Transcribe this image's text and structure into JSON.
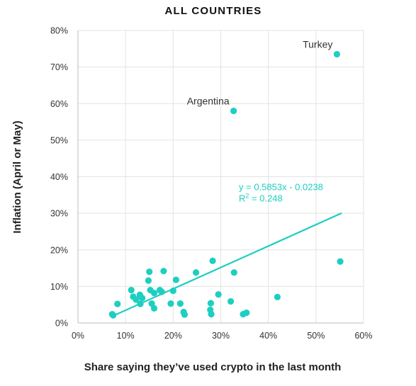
{
  "chart_data": {
    "type": "scatter",
    "title": "ALL COUNTRIES",
    "xlabel": "Share saying they’ve used crypto in the last month",
    "ylabel": "Inflation (April or May)",
    "xlim": [
      0,
      0.6
    ],
    "ylim": [
      0,
      0.8
    ],
    "xticks": [
      0,
      0.1,
      0.2,
      0.3,
      0.4,
      0.5,
      0.6
    ],
    "yticks": [
      0,
      0.1,
      0.2,
      0.3,
      0.4,
      0.5,
      0.6,
      0.7,
      0.8
    ],
    "xtick_labels": [
      "0%",
      "10%",
      "20%",
      "30%",
      "40%",
      "50%",
      "60%"
    ],
    "ytick_labels": [
      "0%",
      "10%",
      "20%",
      "30%",
      "40%",
      "50%",
      "60%",
      "70%",
      "80%"
    ],
    "grid": "vertical and horizontal",
    "color": "#1ccfc1",
    "points": [
      {
        "x": 0.544,
        "y": 0.735
      },
      {
        "x": 0.327,
        "y": 0.58
      },
      {
        "x": 0.551,
        "y": 0.168
      },
      {
        "x": 0.283,
        "y": 0.17
      },
      {
        "x": 0.18,
        "y": 0.142
      },
      {
        "x": 0.15,
        "y": 0.14
      },
      {
        "x": 0.248,
        "y": 0.138
      },
      {
        "x": 0.328,
        "y": 0.138
      },
      {
        "x": 0.206,
        "y": 0.118
      },
      {
        "x": 0.148,
        "y": 0.116
      },
      {
        "x": 0.112,
        "y": 0.09
      },
      {
        "x": 0.152,
        "y": 0.09
      },
      {
        "x": 0.172,
        "y": 0.09
      },
      {
        "x": 0.2,
        "y": 0.088
      },
      {
        "x": 0.16,
        "y": 0.082
      },
      {
        "x": 0.176,
        "y": 0.085
      },
      {
        "x": 0.13,
        "y": 0.077
      },
      {
        "x": 0.116,
        "y": 0.072
      },
      {
        "x": 0.135,
        "y": 0.068
      },
      {
        "x": 0.122,
        "y": 0.064
      },
      {
        "x": 0.295,
        "y": 0.078
      },
      {
        "x": 0.419,
        "y": 0.071
      },
      {
        "x": 0.321,
        "y": 0.059
      },
      {
        "x": 0.083,
        "y": 0.052
      },
      {
        "x": 0.131,
        "y": 0.052
      },
      {
        "x": 0.155,
        "y": 0.053
      },
      {
        "x": 0.195,
        "y": 0.053
      },
      {
        "x": 0.215,
        "y": 0.053
      },
      {
        "x": 0.279,
        "y": 0.054
      },
      {
        "x": 0.16,
        "y": 0.04
      },
      {
        "x": 0.278,
        "y": 0.036
      },
      {
        "x": 0.222,
        "y": 0.03
      },
      {
        "x": 0.224,
        "y": 0.023
      },
      {
        "x": 0.28,
        "y": 0.024
      },
      {
        "x": 0.354,
        "y": 0.028
      },
      {
        "x": 0.347,
        "y": 0.024
      },
      {
        "x": 0.072,
        "y": 0.024
      },
      {
        "x": 0.074,
        "y": 0.021
      }
    ],
    "annotations": [
      {
        "text": "Turkey",
        "x": 0.544,
        "y": 0.735
      },
      {
        "text": "Argentina",
        "x": 0.327,
        "y": 0.58
      }
    ],
    "trendline": {
      "type": "linear",
      "slope": 0.5853,
      "intercept": -0.0238,
      "x_range": [
        0.072,
        0.554
      ],
      "equation": "y = 0.5853x - 0.0238",
      "r2_label": "R",
      "r2_sup": "2",
      "r2_value": " = 0.248"
    }
  }
}
